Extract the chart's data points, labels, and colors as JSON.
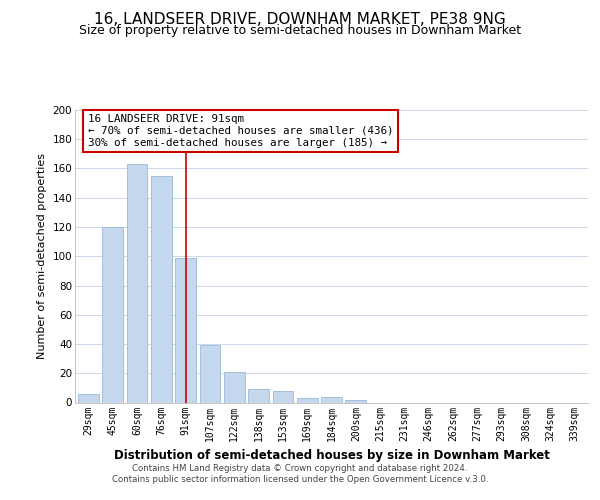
{
  "title": "16, LANDSEER DRIVE, DOWNHAM MARKET, PE38 9NG",
  "subtitle": "Size of property relative to semi-detached houses in Downham Market",
  "xlabel": "Distribution of semi-detached houses by size in Downham Market",
  "ylabel": "Number of semi-detached properties",
  "categories": [
    "29sqm",
    "45sqm",
    "60sqm",
    "76sqm",
    "91sqm",
    "107sqm",
    "122sqm",
    "138sqm",
    "153sqm",
    "169sqm",
    "184sqm",
    "200sqm",
    "215sqm",
    "231sqm",
    "246sqm",
    "262sqm",
    "277sqm",
    "293sqm",
    "308sqm",
    "324sqm",
    "339sqm"
  ],
  "values": [
    6,
    120,
    163,
    155,
    99,
    39,
    21,
    9,
    8,
    3,
    4,
    2,
    0,
    0,
    0,
    0,
    0,
    0,
    0,
    0,
    0
  ],
  "bar_color": "#c5d8ed",
  "bar_edge_color": "#9ab8d8",
  "vline_index": 4,
  "vline_color": "#cc0000",
  "ylim": [
    0,
    200
  ],
  "yticks": [
    0,
    20,
    40,
    60,
    80,
    100,
    120,
    140,
    160,
    180,
    200
  ],
  "annotation_title": "16 LANDSEER DRIVE: 91sqm",
  "annotation_line1": "← 70% of semi-detached houses are smaller (436)",
  "annotation_line2": "30% of semi-detached houses are larger (185) →",
  "annotation_box_color": "#ffffff",
  "annotation_box_edge": "#cc0000",
  "footer1": "Contains HM Land Registry data © Crown copyright and database right 2024.",
  "footer2": "Contains public sector information licensed under the Open Government Licence v.3.0.",
  "bg_color": "#ffffff",
  "grid_color": "#ccd8e8",
  "title_fontsize": 11,
  "subtitle_fontsize": 9,
  "figsize": [
    6.0,
    5.0
  ],
  "dpi": 100
}
